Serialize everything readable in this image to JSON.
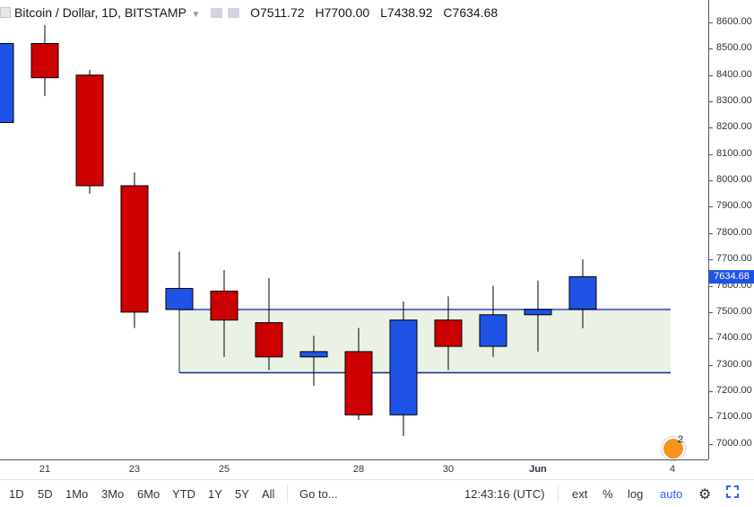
{
  "legend": {
    "symbol": "Bitcoin / Dollar, 1D, BITSTAMP",
    "open_label": "O",
    "open_value": "7511.72",
    "high_label": "H",
    "high_value": "7700.00",
    "low_label": "L",
    "low_value": "7438.92",
    "close_label": "C",
    "close_value": "7634.68"
  },
  "price_axis": {
    "labels": [
      "8600.00",
      "8500.00",
      "8400.00",
      "8300.00",
      "8200.00",
      "8100.00",
      "8000.00",
      "7900.00",
      "7800.00",
      "7700.00",
      "7600.00",
      "7500.00",
      "7400.00",
      "7300.00",
      "7200.00",
      "7100.00",
      "7000.00"
    ],
    "last_price": "7634.68"
  },
  "time_axis": {
    "labels": [
      "21",
      "23",
      "25",
      "28",
      "30",
      "Jun",
      "4"
    ]
  },
  "toolbar": {
    "ranges": [
      "1D",
      "5D",
      "1Mo",
      "3Mo",
      "6Mo",
      "YTD",
      "1Y",
      "5Y",
      "All"
    ],
    "goto": "Go to...",
    "clock": "12:43:16 (UTC)",
    "ext": "ext",
    "percent": "%",
    "log": "log",
    "auto": "auto"
  },
  "badge": {
    "count": "2"
  },
  "colors": {
    "up": "#1e53e5",
    "down": "#cc0000",
    "range_fill": "#eaf2e4",
    "range_line": "#1a2a8a",
    "text": "#2f3241"
  },
  "chart_data": {
    "type": "candlestick",
    "ylim": [
      6950,
      8650
    ],
    "x_labels": [
      "21",
      "23",
      "25",
      "28",
      "30",
      "Jun",
      "4"
    ],
    "candles": [
      {
        "open": 8220,
        "high": 8520,
        "low": 8220,
        "close": 8520
      },
      {
        "open": 8520,
        "high": 8590,
        "low": 8320,
        "close": 8390
      },
      {
        "open": 8400,
        "high": 8420,
        "low": 7950,
        "close": 7980
      },
      {
        "open": 7980,
        "high": 8030,
        "low": 7440,
        "close": 7500
      },
      {
        "open": 7510,
        "high": 7730,
        "low": 7510,
        "close": 7590
      },
      {
        "open": 7580,
        "high": 7660,
        "low": 7330,
        "close": 7470
      },
      {
        "open": 7460,
        "high": 7630,
        "low": 7280,
        "close": 7330
      },
      {
        "open": 7330,
        "high": 7410,
        "low": 7220,
        "close": 7350
      },
      {
        "open": 7350,
        "high": 7440,
        "low": 7090,
        "close": 7110
      },
      {
        "open": 7110,
        "high": 7540,
        "low": 7030,
        "close": 7470
      },
      {
        "open": 7470,
        "high": 7560,
        "low": 7280,
        "close": 7370
      },
      {
        "open": 7370,
        "high": 7600,
        "low": 7330,
        "close": 7490
      },
      {
        "open": 7490,
        "high": 7620,
        "low": 7350,
        "close": 7510
      },
      {
        "open": 7511.72,
        "high": 7700,
        "low": 7438.92,
        "close": 7634.68
      }
    ],
    "range_box": {
      "top": 7510,
      "bottom": 7270
    }
  }
}
